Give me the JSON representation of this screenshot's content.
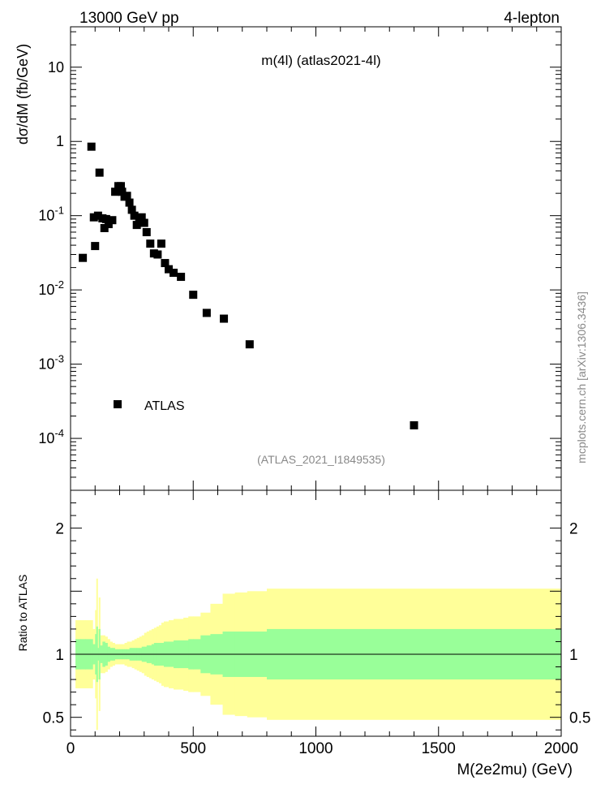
{
  "header": {
    "left": "13000 GeV pp",
    "right": "4-lepton"
  },
  "side_label": "mcplots.cern.ch [arXiv:1306.3436]",
  "chart_data": [
    {
      "type": "scatter",
      "title": "m(4l) (atlas2021-4l)",
      "subtitle": "(ATLAS_2021_I1849535)",
      "ylabel": "dσ/dM (fb/GeV)",
      "xlabel": "",
      "log_y": true,
      "xlim": [
        0,
        2000
      ],
      "ylim": [
        2e-05,
        35
      ],
      "y_tick_labels": [
        "10^-4",
        "10^-3",
        "10^-2",
        "10^-1",
        "1",
        "10"
      ],
      "legend": {
        "position": "lower-left",
        "entries": [
          {
            "name": "ATLAS",
            "marker": "square",
            "color": "#000000"
          }
        ]
      },
      "series": [
        {
          "name": "ATLAS",
          "points": [
            [
              50,
              0.027
            ],
            [
              85,
              0.85
            ],
            [
              95,
              0.095
            ],
            [
              100,
              0.039
            ],
            [
              112,
              0.1
            ],
            [
              118,
              0.38
            ],
            [
              130,
              0.092
            ],
            [
              138,
              0.068
            ],
            [
              145,
              0.09
            ],
            [
              155,
              0.077
            ],
            [
              170,
              0.087
            ],
            [
              182,
              0.21
            ],
            [
              195,
              0.25
            ],
            [
              205,
              0.25
            ],
            [
              210,
              0.21
            ],
            [
              220,
              0.18
            ],
            [
              230,
              0.185
            ],
            [
              240,
              0.15
            ],
            [
              250,
              0.12
            ],
            [
              260,
              0.1
            ],
            [
              270,
              0.075
            ],
            [
              280,
              0.085
            ],
            [
              290,
              0.095
            ],
            [
              300,
              0.08
            ],
            [
              310,
              0.06
            ],
            [
              325,
              0.042
            ],
            [
              340,
              0.031
            ],
            [
              355,
              0.03
            ],
            [
              370,
              0.042
            ],
            [
              385,
              0.023
            ],
            [
              400,
              0.019
            ],
            [
              420,
              0.017
            ],
            [
              450,
              0.015
            ],
            [
              500,
              0.0086
            ],
            [
              555,
              0.0049
            ],
            [
              625,
              0.0041
            ],
            [
              730,
              0.00185
            ],
            [
              1400,
              0.00015
            ]
          ]
        }
      ]
    },
    {
      "type": "area",
      "title": "",
      "xlabel": "M(2e2mu) (GeV)",
      "ylabel": "Ratio to ATLAS",
      "xlim": [
        0,
        2000
      ],
      "ylim": [
        0.35,
        2.3
      ],
      "x_ticks": [
        0,
        500,
        1000,
        1500,
        2000
      ],
      "x_tick_labels": [
        "0",
        "500",
        "1000",
        "1500",
        "2000"
      ],
      "y_ticks": [
        0.5,
        1,
        2
      ],
      "y_tick_labels": [
        "0.5",
        "1",
        "2"
      ],
      "reference_line": 1,
      "band_colors": {
        "stat": "#99ff99",
        "total": "#ffff99"
      },
      "edges": [
        20,
        40,
        60,
        80,
        90,
        100,
        105,
        110,
        115,
        120,
        130,
        140,
        150,
        160,
        170,
        180,
        190,
        200,
        210,
        220,
        230,
        240,
        250,
        260,
        270,
        280,
        290,
        300,
        310,
        320,
        330,
        340,
        350,
        360,
        370,
        380,
        390,
        400,
        420,
        440,
        460,
        480,
        500,
        530,
        570,
        620,
        670,
        720,
        800,
        2000
      ],
      "stat_err": [
        0.12,
        0.12,
        0.12,
        0.12,
        0.08,
        0.16,
        0.22,
        0.05,
        0.2,
        0.07,
        0.1,
        0.09,
        0.06,
        0.05,
        0.05,
        0.04,
        0.04,
        0.04,
        0.04,
        0.04,
        0.04,
        0.05,
        0.05,
        0.05,
        0.05,
        0.05,
        0.06,
        0.06,
        0.07,
        0.07,
        0.08,
        0.09,
        0.09,
        0.09,
        0.09,
        0.1,
        0.1,
        0.1,
        0.11,
        0.11,
        0.11,
        0.12,
        0.12,
        0.15,
        0.16,
        0.18,
        0.18,
        0.18,
        0.2
      ],
      "total_err": [
        0.27,
        0.27,
        0.27,
        0.27,
        0.2,
        0.35,
        0.6,
        0.2,
        0.45,
        0.15,
        0.15,
        0.14,
        0.12,
        0.1,
        0.09,
        0.08,
        0.08,
        0.08,
        0.08,
        0.09,
        0.1,
        0.1,
        0.11,
        0.12,
        0.13,
        0.14,
        0.15,
        0.17,
        0.18,
        0.19,
        0.2,
        0.21,
        0.22,
        0.23,
        0.25,
        0.26,
        0.26,
        0.27,
        0.28,
        0.28,
        0.29,
        0.3,
        0.3,
        0.33,
        0.4,
        0.48,
        0.49,
        0.5,
        0.52
      ]
    }
  ]
}
